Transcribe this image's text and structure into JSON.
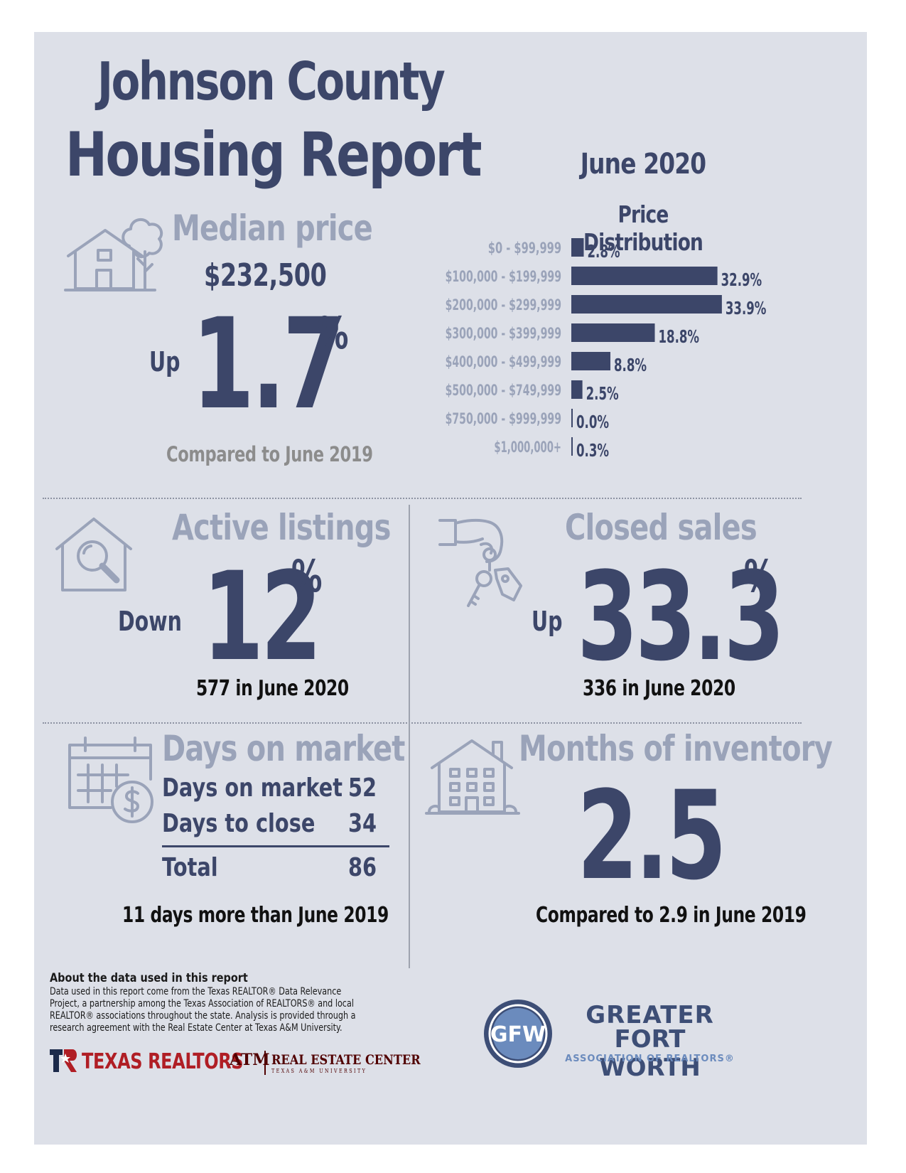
{
  "header": {
    "title_line1": "Johnson County",
    "title_line2": "Housing Report",
    "report_month": "June 2020"
  },
  "median_price": {
    "heading": "Median price",
    "value": "$232,500",
    "direction": "Up",
    "change": "1.7",
    "percent_sign": "%",
    "note": "Compared to June 2019"
  },
  "price_distribution": {
    "heading": "Price Distribution"
  },
  "chart_data": {
    "type": "bar",
    "orientation": "horizontal",
    "title": "Price Distribution",
    "categories": [
      "$0 - $99,999",
      "$100,000 - $199,999",
      "$200,000 - $299,999",
      "$300,000 - $399,999",
      "$400,000 - $499,999",
      "$500,000 - $749,999",
      "$750,000 - $999,999",
      "$1,000,000+"
    ],
    "values": [
      2.8,
      32.9,
      33.9,
      18.8,
      8.8,
      2.5,
      0.0,
      0.3
    ],
    "value_labels": [
      "2.8%",
      "32.9%",
      "33.9%",
      "18.8%",
      "8.8%",
      "2.5%",
      "0.0%",
      "0.3%"
    ],
    "bar_color": "#3c4669",
    "label_color": "#9aa3b9"
  },
  "active_listings": {
    "heading": "Active listings",
    "direction": "Down",
    "change": "12",
    "percent_sign": "%",
    "note": "577 in June 2020"
  },
  "closed_sales": {
    "heading": "Closed sales",
    "direction": "Up",
    "change": "33.3",
    "percent_sign": "%",
    "note": "336 in June 2020"
  },
  "days_on_market": {
    "heading": "Days on market",
    "rows": [
      {
        "label": "Days on market",
        "value": "52"
      },
      {
        "label": "Days to close",
        "value": "34"
      }
    ],
    "total_label": "Total",
    "total_value": "86",
    "note": "11 days more than June 2019"
  },
  "months_inventory": {
    "heading": "Months of inventory",
    "value": "2.5",
    "note": "Compared to 2.9 in June 2019"
  },
  "about": {
    "title": "About the data used in this report",
    "body": "Data used in this report come from the Texas REALTOR® Data Relevance Project, a partnership among the Texas Association of REALTORS® and local REALTOR® associations throughout the state. Analysis is provided through a research agreement with the Real Estate Center at Texas A&M University."
  },
  "logos": {
    "texas_realtors": "TEXAS REALTORS",
    "tamu_mark": "ATM",
    "real_estate_center": "REAL ESTATE CENTER",
    "real_estate_center_sub": "TEXAS A&M UNIVERSITY",
    "gfw_monogram": "GFW",
    "gfw_line1": "GREATER",
    "gfw_line2": "FORT WORTH",
    "gfw_line3": "ASSOCIATION OF REALTORS®"
  },
  "colors": {
    "navy": "#3c4669",
    "muted_heading": "#9aa3b9",
    "panel_bg": "#dde0e8",
    "texas_realtors_red": "#b01e25",
    "tamu_maroon": "#500000",
    "gfw_blue": "#3d4e76"
  }
}
